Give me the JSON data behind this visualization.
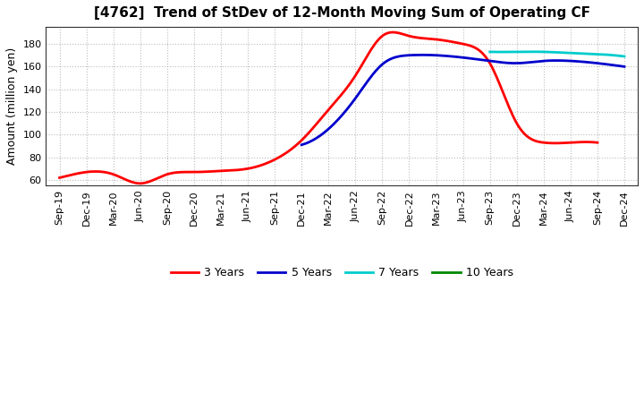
{
  "title": "[4762]  Trend of StDev of 12-Month Moving Sum of Operating CF",
  "ylabel": "Amount (million yen)",
  "background_color": "#ffffff",
  "grid_color": "#aaaaaa",
  "x_labels": [
    "Sep-19",
    "Dec-19",
    "Mar-20",
    "Jun-20",
    "Sep-20",
    "Dec-20",
    "Mar-21",
    "Jun-21",
    "Sep-21",
    "Dec-21",
    "Mar-22",
    "Jun-22",
    "Sep-22",
    "Dec-22",
    "Mar-23",
    "Jun-23",
    "Sep-23",
    "Dec-23",
    "Mar-24",
    "Jun-24",
    "Sep-24",
    "Dec-24"
  ],
  "series": {
    "3 Years": {
      "color": "#ff0000",
      "values": [
        62,
        67,
        65,
        57,
        65,
        67,
        68,
        70,
        78,
        95,
        122,
        152,
        187,
        187,
        184,
        180,
        163,
        110,
        93,
        93,
        93,
        null
      ]
    },
    "5 Years": {
      "color": "#0000cc",
      "values": [
        null,
        null,
        null,
        null,
        null,
        null,
        null,
        null,
        null,
        91,
        105,
        132,
        162,
        170,
        170,
        168,
        165,
        163,
        165,
        165,
        163,
        160
      ]
    },
    "7 Years": {
      "color": "#00cccc",
      "values": [
        null,
        null,
        null,
        null,
        null,
        null,
        null,
        null,
        null,
        null,
        null,
        null,
        null,
        null,
        null,
        null,
        173,
        173,
        173,
        172,
        171,
        169
      ]
    },
    "10 Years": {
      "color": "#008800",
      "values": [
        null,
        null,
        null,
        null,
        null,
        null,
        null,
        null,
        null,
        null,
        null,
        null,
        null,
        null,
        null,
        null,
        null,
        null,
        null,
        null,
        null,
        null
      ]
    }
  },
  "ylim": [
    55,
    195
  ],
  "yticks": [
    60,
    80,
    100,
    120,
    140,
    160,
    180
  ],
  "legend_order": [
    "3 Years",
    "5 Years",
    "7 Years",
    "10 Years"
  ],
  "title_fontsize": 11,
  "ylabel_fontsize": 9,
  "tick_fontsize": 8,
  "legend_fontsize": 9,
  "linewidth": 2.0
}
